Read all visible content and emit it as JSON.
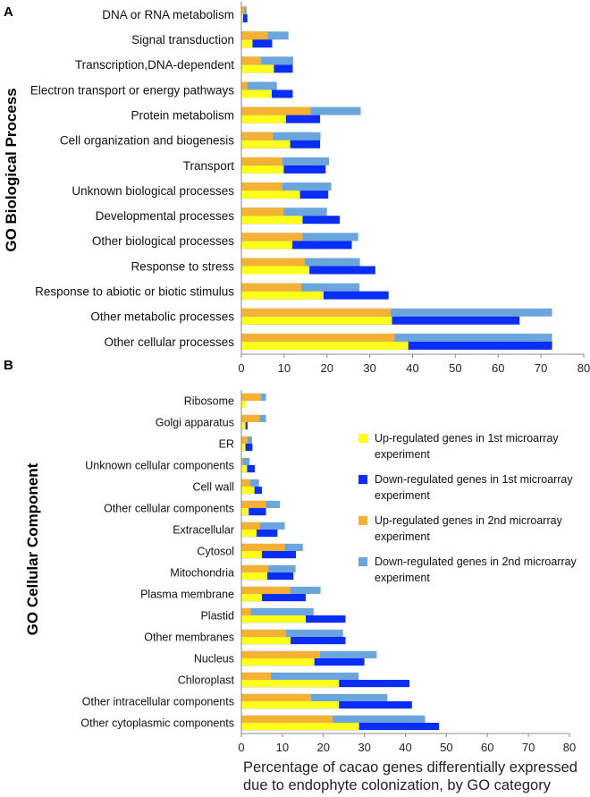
{
  "chart_data": [
    {
      "panel": "A",
      "type": "bar",
      "orientation": "horizontal",
      "ylabel": "GO Biological Process",
      "xlim": [
        0,
        80
      ],
      "xticks": [
        0,
        10,
        20,
        30,
        40,
        50,
        60,
        70,
        80
      ],
      "categories": [
        "DNA or RNA metabolism",
        "Signal transduction",
        "Transcription,DNA-dependent",
        "Electron transport or energy pathways",
        "Protein metabolism",
        "Cell organization and biogenesis",
        "Transport",
        "Unknown biological processes",
        "Developmental processes",
        "Other biological processes",
        "Response to stress",
        "Response to abiotic or biotic stimulus",
        "Other metabolic processes",
        "Other cellular processes"
      ],
      "series": [
        {
          "name": "Up-regulated genes in 1st microarray experiment",
          "color": "#ffff1a",
          "values": [
            0.4,
            2.6,
            7.6,
            7.1,
            10.4,
            11.4,
            9.9,
            13.7,
            14.3,
            11.9,
            15.9,
            19.2,
            35.2,
            39.0
          ]
        },
        {
          "name": "Down-regulated genes in 1st microarray experiment",
          "color": "#0a2ef5",
          "values": [
            1.4,
            7.2,
            12.0,
            12.0,
            18.4,
            18.4,
            19.7,
            20.3,
            23.0,
            25.8,
            31.3,
            34.4,
            65.0,
            72.6
          ]
        },
        {
          "name": "Up-regulated genes in 2nd microarray experiment",
          "color": "#f5b133",
          "values": [
            0.7,
            6.2,
            4.6,
            1.4,
            16.2,
            7.4,
            9.6,
            9.6,
            9.9,
            14.3,
            14.8,
            14.0,
            34.9,
            35.8
          ]
        },
        {
          "name": "Down-regulated genes in 2nd microarray experiment",
          "color": "#6aa6dd",
          "values": [
            1.2,
            11.0,
            12.1,
            8.3,
            27.9,
            18.5,
            20.5,
            21.0,
            20.0,
            27.3,
            27.7,
            27.6,
            72.6,
            72.6
          ]
        }
      ]
    },
    {
      "panel": "B",
      "type": "bar",
      "orientation": "horizontal",
      "ylabel": "GO Cellular Component",
      "xlabel_line1": "Percentage of cacao genes differentially expressed",
      "xlabel_line2": "due to endophyte colonization, by GO category",
      "xlim": [
        0,
        80
      ],
      "xticks": [
        0,
        10,
        20,
        30,
        40,
        50,
        60,
        70,
        80
      ],
      "categories": [
        "Ribosome",
        "Golgi apparatus",
        "ER",
        "Unknown cellular components",
        "Cell wall",
        "Other cellular components",
        "Extracellular",
        "Cytosol",
        "Mitochondria",
        "Plasma membrane",
        "Plastid",
        "Other membranes",
        "Nucleus",
        "Chloroplast",
        "Other intracellular components",
        "Other cytoplasmic components"
      ],
      "series": [
        {
          "name": "Up-regulated genes in 1st microarray experiment",
          "color": "#ffff1a",
          "values": [
            1.0,
            1.0,
            1.0,
            1.4,
            3.2,
            1.8,
            3.7,
            5.0,
            6.3,
            5.0,
            15.7,
            12.0,
            17.8,
            23.8,
            23.8,
            28.7
          ]
        },
        {
          "name": "Down-regulated genes in 1st microarray experiment",
          "color": "#0a2ef5",
          "values": [
            0,
            1.5,
            2.7,
            3.3,
            5.0,
            6.0,
            8.8,
            13.3,
            12.7,
            15.7,
            25.4,
            25.4,
            30.0,
            41.0,
            41.6,
            48.2
          ]
        },
        {
          "name": "Up-regulated genes in 2nd microarray experiment",
          "color": "#f5b133",
          "values": [
            4.8,
            4.5,
            1.5,
            0.4,
            2.2,
            6.0,
            4.6,
            10.6,
            6.6,
            11.9,
            2.3,
            10.9,
            19.2,
            7.2,
            17.0,
            22.3
          ]
        },
        {
          "name": "Down-regulated genes in 2nd microarray experiment",
          "color": "#6aa6dd",
          "values": [
            6.0,
            6.0,
            2.6,
            2.0,
            4.3,
            9.4,
            10.6,
            15.0,
            13.2,
            19.3,
            17.6,
            24.8,
            33.0,
            28.6,
            35.6,
            44.8
          ]
        }
      ],
      "legend_position": "right",
      "legend": [
        {
          "line1": "Up-regulated genes in 1st microarray",
          "line2": "experiment",
          "color": "#ffff1a"
        },
        {
          "line1": "Down-regulated genes in 1st microarray",
          "line2": "experiment",
          "color": "#0a2ef5"
        },
        {
          "line1": "Up-regulated genes in 2nd microarray",
          "line2": "experiment",
          "color": "#f5b133"
        },
        {
          "line1": "Down-regulated genes in 2nd microarray",
          "line2": "experiment",
          "color": "#6aa6dd"
        }
      ]
    }
  ]
}
